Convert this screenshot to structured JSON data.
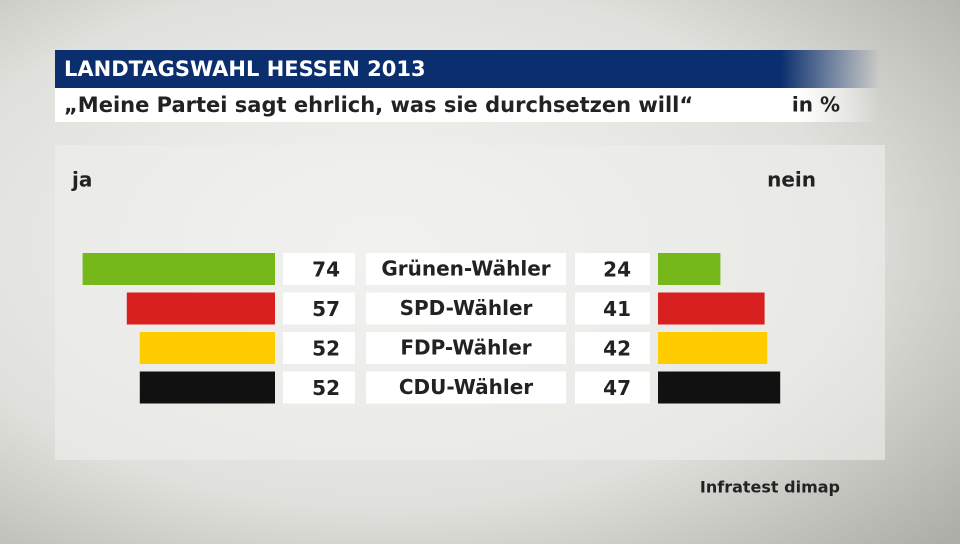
{
  "chart_data": {
    "type": "diverging-bar",
    "title": "LANDTAGSWAHL HESSEN 2013",
    "subtitle": "„Meine Partei sagt ehrlich, was sie durchsetzen will“",
    "unit": "in %",
    "categories": [
      "Grünen-Wähler",
      "SPD-Wähler",
      "FDP-Wähler",
      "CDU-Wähler"
    ],
    "colors": [
      "#76b819",
      "#d7201f",
      "#ffcc00",
      "#111111"
    ],
    "series": [
      {
        "name": "ja",
        "values": [
          74,
          57,
          52,
          52
        ]
      },
      {
        "name": "nein",
        "values": [
          24,
          41,
          42,
          47
        ]
      }
    ],
    "source": "Infratest dimap"
  }
}
